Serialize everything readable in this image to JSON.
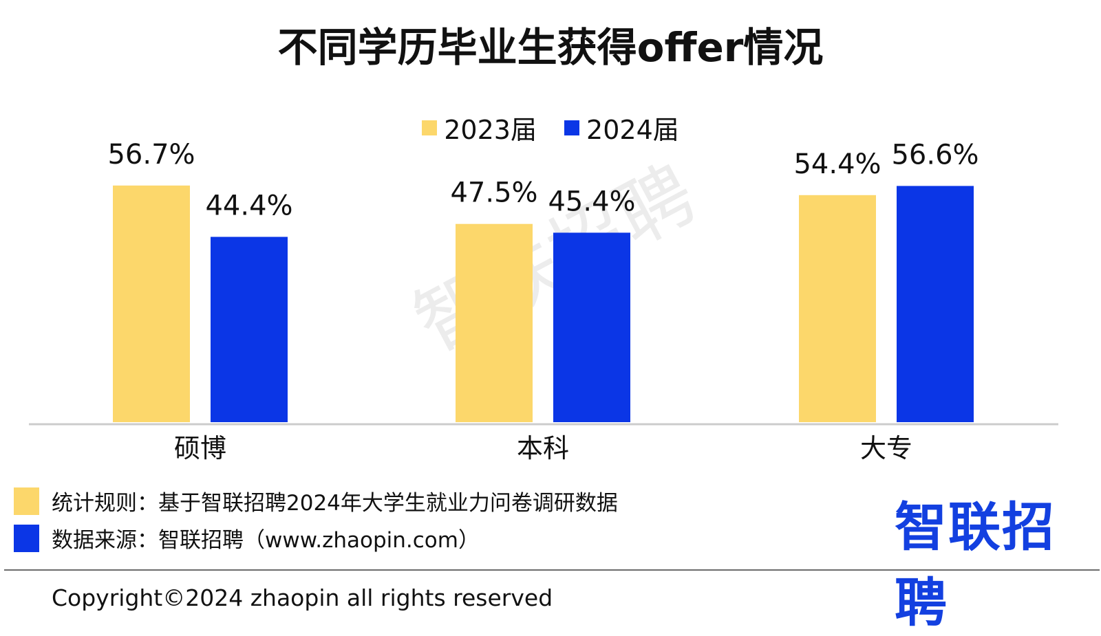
{
  "colors": {
    "y2023": "#FCD76B",
    "y2024": "#0B36E6",
    "axis": "#cccccc",
    "logo": "#1340E0",
    "watermark": "#e9e9e9"
  },
  "chart_data": {
    "type": "bar",
    "title": "不同学历毕业生获得offer情况",
    "categories": [
      "硕博",
      "本科",
      "大专"
    ],
    "series": [
      {
        "name": "2023届",
        "values": [
          56.7,
          47.5,
          54.4
        ]
      },
      {
        "name": "2024届",
        "values": [
          44.4,
          45.4,
          56.6
        ]
      }
    ],
    "value_labels": [
      [
        "56.7%",
        "47.5%",
        "54.4%"
      ],
      [
        "44.4%",
        "45.4%",
        "56.6%"
      ]
    ],
    "legend_position": "top-center",
    "grid": false,
    "ylim": [
      0,
      100
    ]
  },
  "footer": {
    "rule_text": "统计规则：基于智联招聘2024年大学生就业力问卷调研数据",
    "source_text": "数据来源：智联招聘（www.zhaopin.com）",
    "copyright": "Copyright©2024 zhaopin all rights reserved"
  },
  "logo": {
    "text": "智联招聘"
  },
  "watermark": {
    "text": "智联招聘"
  }
}
